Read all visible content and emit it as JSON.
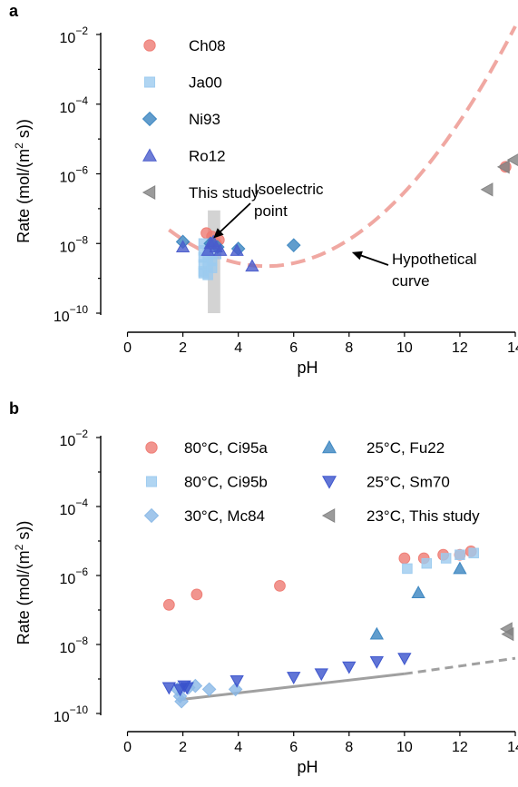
{
  "chart_data": [
    {
      "panel": "a",
      "type": "scatter",
      "title": "",
      "xlabel": "pH",
      "ylabel": "Rate (mol/(m² s))",
      "xlim": [
        -1,
        14
      ],
      "ylim": [
        -10,
        -2
      ],
      "y_scale": "log",
      "x_ticks": [
        "0",
        "2",
        "4",
        "6",
        "8",
        "10",
        "12",
        "14"
      ],
      "x_tick_values": [
        0,
        2,
        4,
        6,
        8,
        10,
        12,
        14
      ],
      "y_ticks": [
        {
          "exp": -2,
          "base": "10",
          "sup": "−2"
        },
        {
          "exp": -4,
          "base": "10",
          "sup": "−4"
        },
        {
          "exp": -6,
          "base": "10",
          "sup": "−6"
        },
        {
          "exp": -8,
          "base": "10",
          "sup": "−8"
        },
        {
          "exp": -10,
          "base": "10",
          "sup": "−10"
        }
      ],
      "legend_position": "top-left",
      "grid": false,
      "band": {
        "x0": 2.9,
        "x1": 3.35,
        "color": "#c8c8c8"
      },
      "series": [
        {
          "name": "Ch08",
          "marker": "circle",
          "color": "#ee7b73",
          "points": [
            [
              2.85,
              -7.7
            ],
            [
              3.05,
              -7.8
            ],
            [
              3.2,
              -8.0
            ],
            [
              3.3,
              -7.9
            ],
            [
              13.65,
              -5.8
            ]
          ]
        },
        {
          "name": "Ja00",
          "marker": "square",
          "color": "#9ccbef",
          "points": [
            [
              2.75,
              -8.0
            ],
            [
              2.75,
              -8.2
            ],
            [
              2.75,
              -8.4
            ],
            [
              2.75,
              -8.6
            ],
            [
              2.75,
              -8.8
            ],
            [
              2.75,
              -8.85
            ],
            [
              2.9,
              -8.3
            ],
            [
              2.9,
              -8.6
            ],
            [
              2.9,
              -8.9
            ],
            [
              3.05,
              -8.1
            ],
            [
              3.05,
              -8.5
            ],
            [
              3.05,
              -8.7
            ],
            [
              3.2,
              -8.3
            ]
          ]
        },
        {
          "name": "Ni93",
          "marker": "diamond",
          "color": "#3a85c0",
          "points": [
            [
              2.0,
              -7.95
            ],
            [
              3.0,
              -8.0
            ],
            [
              3.25,
              -8.1
            ],
            [
              4.0,
              -8.15
            ],
            [
              6.0,
              -8.05
            ]
          ]
        },
        {
          "name": "Ro12",
          "marker": "triangle-up",
          "color": "#4a5ccc",
          "points": [
            [
              2.0,
              -8.1
            ],
            [
              2.9,
              -8.2
            ],
            [
              3.0,
              -8.0
            ],
            [
              3.1,
              -7.95
            ],
            [
              3.2,
              -8.1
            ],
            [
              3.35,
              -8.2
            ],
            [
              3.95,
              -8.2
            ],
            [
              4.5,
              -8.65
            ]
          ]
        },
        {
          "name": "This study",
          "marker": "triangle-left",
          "color": "#828282",
          "points": [
            [
              13.0,
              -6.45
            ],
            [
              13.6,
              -5.8
            ],
            [
              13.95,
              -5.6
            ]
          ]
        }
      ],
      "curve": {
        "x_start": 1.5,
        "x_end": 14,
        "vertex_x": 5,
        "vertex_y": -8.65,
        "curvature": 0.085,
        "color": "#f0a8a2",
        "style": "dashed"
      },
      "annotations": [
        {
          "lines": [
            "Isoelectric",
            "point"
          ],
          "arrow_to": [
            3.1,
            -7.85
          ]
        },
        {
          "lines": [
            "Hypothetical",
            "curve"
          ],
          "arrow_to": [
            8.1,
            -8.25
          ]
        }
      ]
    },
    {
      "panel": "b",
      "type": "scatter",
      "title": "",
      "xlabel": "pH",
      "ylabel": "Rate (mol/(m² s))",
      "xlim": [
        -1,
        14
      ],
      "ylim": [
        -10,
        -2
      ],
      "y_scale": "log",
      "x_ticks": [
        "0",
        "2",
        "4",
        "6",
        "8",
        "10",
        "12",
        "14"
      ],
      "x_tick_values": [
        0,
        2,
        4,
        6,
        8,
        10,
        12,
        14
      ],
      "y_ticks": [
        {
          "exp": -2,
          "base": "10",
          "sup": "−2"
        },
        {
          "exp": -4,
          "base": "10",
          "sup": "−4"
        },
        {
          "exp": -6,
          "base": "10",
          "sup": "−6"
        },
        {
          "exp": -8,
          "base": "10",
          "sup": "−8"
        },
        {
          "exp": -10,
          "base": "10",
          "sup": "−10"
        }
      ],
      "legend_position": "top",
      "grid": false,
      "series": [
        {
          "name": "80°C, Ci95a",
          "marker": "circle",
          "color": "#ee7b73",
          "points": [
            [
              1.5,
              -6.85
            ],
            [
              2.5,
              -6.55
            ],
            [
              5.5,
              -6.3
            ],
            [
              10.0,
              -5.5
            ],
            [
              10.7,
              -5.5
            ],
            [
              11.4,
              -5.4
            ],
            [
              12.0,
              -5.4
            ],
            [
              12.4,
              -5.3
            ]
          ]
        },
        {
          "name": "80°C, Ci95b",
          "marker": "square",
          "color": "#9ccbef",
          "points": [
            [
              10.1,
              -5.8
            ],
            [
              10.8,
              -5.65
            ],
            [
              11.5,
              -5.5
            ],
            [
              12.0,
              -5.4
            ],
            [
              12.5,
              -5.35
            ]
          ]
        },
        {
          "name": "30°C, Mc84",
          "marker": "diamond",
          "color": "#8ab8e6",
          "points": [
            [
              1.8,
              -9.3
            ],
            [
              1.9,
              -9.5
            ],
            [
              1.95,
              -9.65
            ],
            [
              2.2,
              -9.25
            ],
            [
              2.45,
              -9.2
            ],
            [
              2.95,
              -9.3
            ],
            [
              3.9,
              -9.3
            ]
          ]
        },
        {
          "name": "25°C, Fu22",
          "marker": "triangle-up",
          "color": "#3a85c0",
          "points": [
            [
              9.0,
              -7.7
            ],
            [
              10.5,
              -6.5
            ],
            [
              12.0,
              -5.8
            ]
          ]
        },
        {
          "name": "25°C, Sm70",
          "marker": "triangle-down",
          "color": "#3a52cc",
          "points": [
            [
              1.5,
              -9.25
            ],
            [
              1.9,
              -9.3
            ],
            [
              2.05,
              -9.2
            ],
            [
              2.15,
              -9.25
            ],
            [
              3.95,
              -9.05
            ],
            [
              6.0,
              -8.95
            ],
            [
              7.0,
              -8.85
            ],
            [
              8.0,
              -8.65
            ],
            [
              9.0,
              -8.5
            ],
            [
              10.0,
              -8.4
            ]
          ]
        },
        {
          "name": "23°C, This study",
          "marker": "triangle-left",
          "color": "#828282",
          "points": [
            [
              13.7,
              -7.55
            ],
            [
              13.75,
              -7.7
            ]
          ]
        }
      ],
      "trend_line": {
        "solid": [
          [
            1.9,
            -9.6
          ],
          [
            10.0,
            -8.85
          ]
        ],
        "dashed": [
          [
            10.0,
            -8.85
          ],
          [
            14.0,
            -8.4
          ]
        ],
        "color": "#a0a0a0"
      }
    }
  ]
}
